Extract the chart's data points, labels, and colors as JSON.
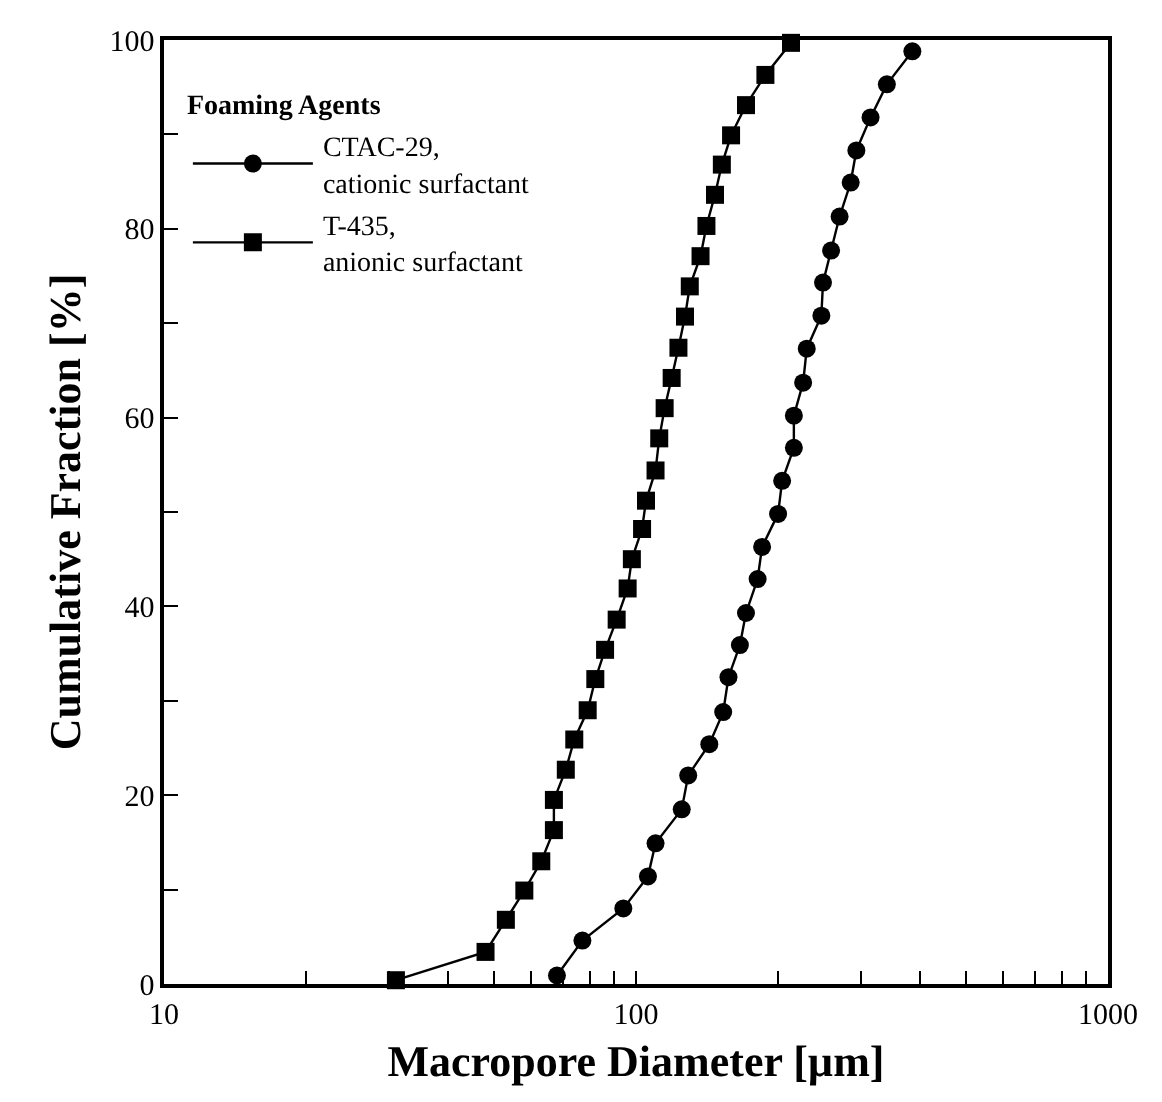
{
  "chart_data": {
    "type": "line",
    "xlabel": "Macropore Diameter [µm]",
    "ylabel": "Cumulative Fraction [%]",
    "legend_title": "Foaming Agents",
    "legend": "top left",
    "log": "x",
    "grid": false,
    "line_style": "solid",
    "xlim": [
      10,
      1000
    ],
    "ylim": [
      0,
      100
    ],
    "xticks": [
      10,
      {
        "value": 20,
        "label": null
      },
      {
        "value": 30,
        "label": null
      },
      {
        "value": 40,
        "label": null
      },
      {
        "value": 50,
        "label": null
      },
      {
        "value": 60,
        "label": null
      },
      {
        "value": 70,
        "label": null
      },
      {
        "value": 80,
        "label": null
      },
      {
        "value": 90,
        "label": null
      },
      100,
      {
        "value": 200,
        "label": null
      },
      {
        "value": 300,
        "label": null
      },
      {
        "value": 400,
        "label": null
      },
      {
        "value": 500,
        "label": null
      },
      {
        "value": 600,
        "label": null
      },
      {
        "value": 700,
        "label": null
      },
      {
        "value": 800,
        "label": null
      },
      {
        "value": 900,
        "label": null
      },
      1000
    ],
    "yticks": [
      0,
      {
        "value": 10,
        "label": null
      },
      20,
      {
        "value": 30,
        "label": null
      },
      40,
      {
        "value": 50,
        "label": null
      },
      60,
      {
        "value": 70,
        "label": null
      },
      80,
      {
        "value": 90,
        "label": null
      },
      100
    ],
    "series": [
      {
        "name": "CTAC-29,\ncationic surfactant",
        "color": "#000000",
        "marker": "circle",
        "x": [
          68,
          77,
          94,
          106,
          110,
          125,
          129,
          143,
          153,
          157,
          166,
          171,
          181,
          185,
          200,
          204,
          216,
          216,
          226,
          230,
          247,
          249,
          259,
          270,
          285,
          293,
          314,
          340,
          385
        ],
        "values": [
          0.9,
          4.6,
          8.0,
          11.4,
          14.9,
          18.5,
          22.1,
          25.4,
          28.8,
          32.5,
          35.9,
          39.3,
          42.9,
          46.3,
          49.8,
          53.3,
          56.8,
          60.2,
          63.7,
          67.3,
          70.8,
          74.3,
          77.7,
          81.3,
          84.9,
          88.3,
          91.8,
          95.3,
          98.8
        ]
      },
      {
        "name": "T-435,\nanionic surfactant",
        "color": "#000000",
        "marker": "square",
        "x": [
          31,
          48,
          53,
          58,
          63,
          67,
          67,
          71,
          74,
          79,
          82,
          86,
          91,
          96,
          98,
          103,
          105,
          110,
          112,
          115,
          119,
          123,
          127,
          130,
          137,
          141,
          147,
          152,
          159,
          171,
          188,
          213
        ],
        "values": [
          0.4,
          3.4,
          6.8,
          9.9,
          13.0,
          16.3,
          19.5,
          22.7,
          25.9,
          29.0,
          32.3,
          35.4,
          38.6,
          41.9,
          45.0,
          48.2,
          51.2,
          54.4,
          57.8,
          61.0,
          64.2,
          67.4,
          70.7,
          73.9,
          77.1,
          80.3,
          83.6,
          86.8,
          89.9,
          93.1,
          96.3,
          99.7
        ]
      }
    ]
  }
}
